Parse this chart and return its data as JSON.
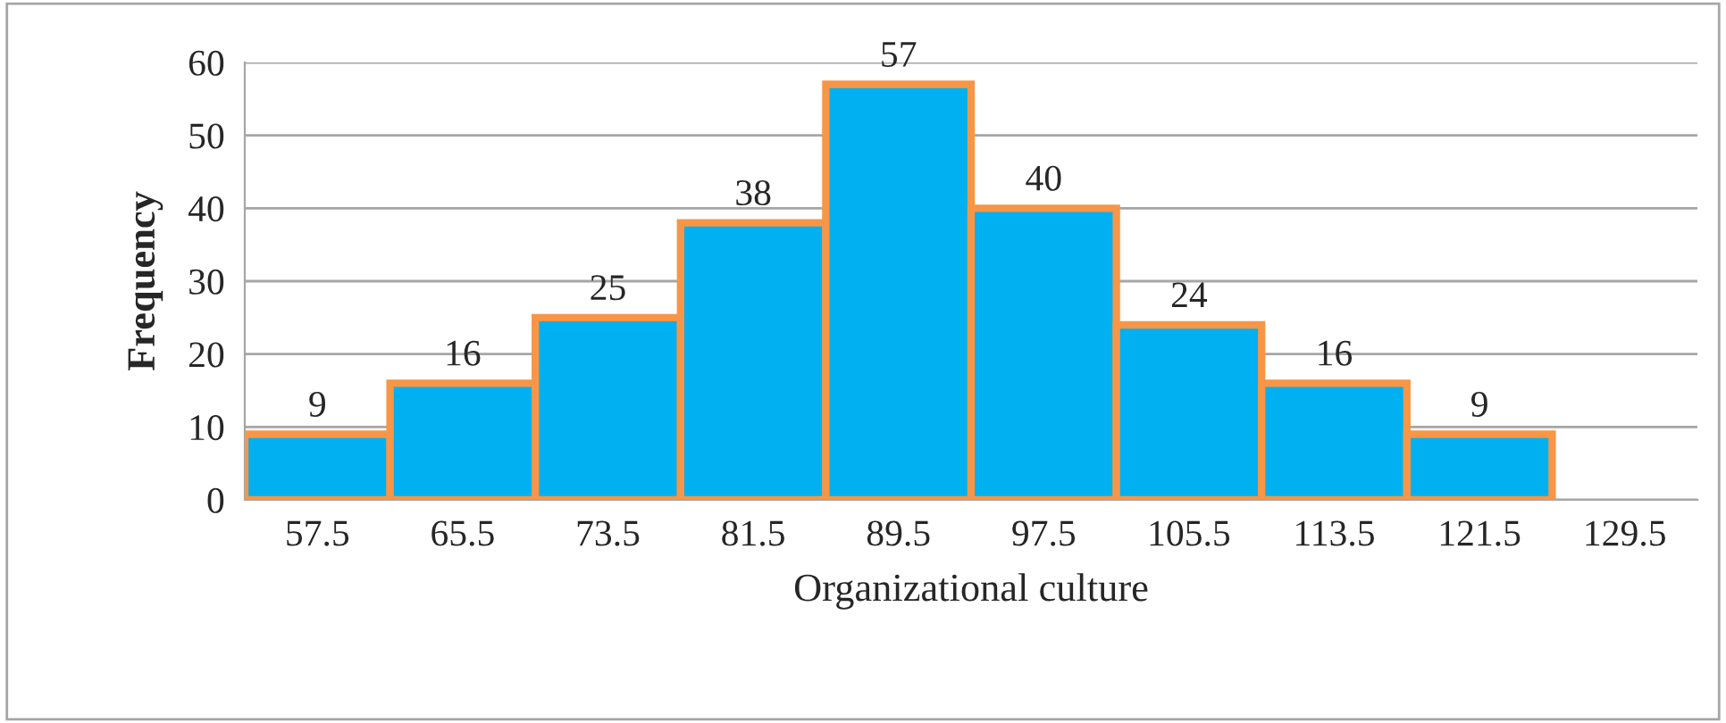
{
  "chart_data": {
    "type": "bar",
    "xlabel": "Organizational culture",
    "ylabel": "Frequency",
    "categories": [
      "57.5",
      "65.5",
      "73.5",
      "81.5",
      "89.5",
      "97.5",
      "105.5",
      "113.5",
      "121.5",
      "129.5"
    ],
    "values": [
      9,
      16,
      25,
      38,
      57,
      40,
      24,
      16,
      9,
      null
    ],
    "color": "#00b0f0",
    "ylim": [
      0,
      60
    ],
    "yticks": [
      0,
      10,
      20,
      30,
      40,
      50,
      60
    ],
    "grid": "y",
    "data_labels": true
  }
}
